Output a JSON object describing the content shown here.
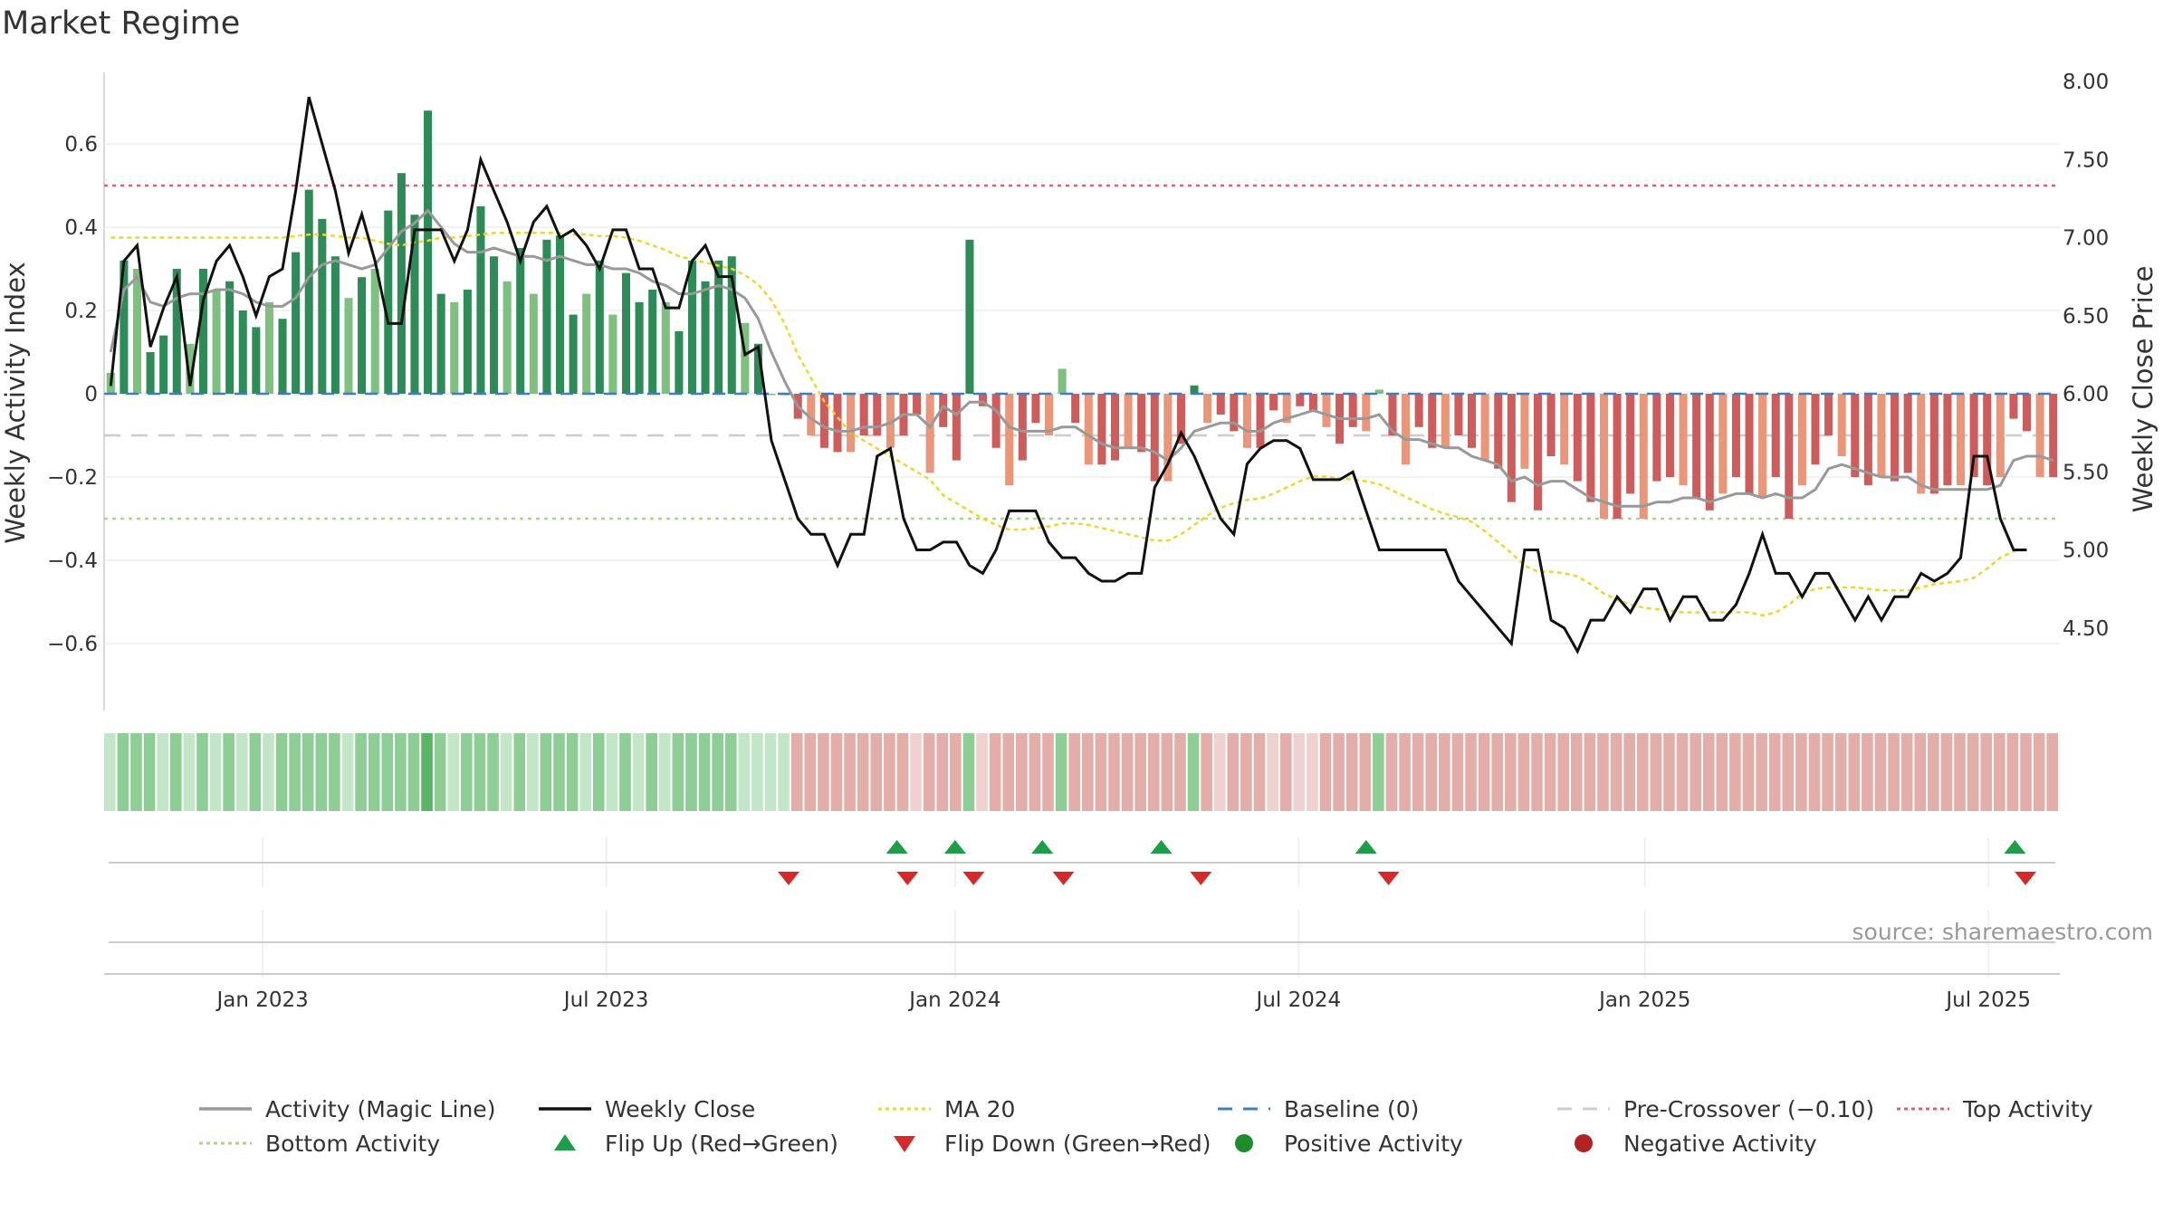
{
  "chart_data": {
    "type": "bar",
    "title": "Market Regime",
    "ylabel_left": "Weekly Activity Index",
    "ylabel_right": "Weekly Close Price",
    "source": "source: sharemaestro.com",
    "y_left_range": [
      -0.75,
      0.75
    ],
    "y_left_ticks": [
      "0.6",
      "0.4",
      "0.2",
      "0",
      "−0.2",
      "−0.4",
      "−0.6"
    ],
    "y_right_range": [
      4.0,
      8.0
    ],
    "y_right_ticks": [
      "8.00",
      "7.50",
      "7.00",
      "6.50",
      "6.00",
      "5.50",
      "5.00",
      "4.50"
    ],
    "x_tick_labels": [
      "Jan 2023",
      "Jul 2023",
      "Jan 2024",
      "Jul 2024",
      "Jan 2025",
      "Jul 2025"
    ],
    "x_tick_weeks": [
      12,
      38,
      64.4,
      90.4,
      116.6,
      142.6
    ],
    "reference_lines": {
      "top_activity": 0.5,
      "bottom_activity": -0.3,
      "baseline": 0,
      "pre_crossover": -0.1
    },
    "activity": [
      0.05,
      0.32,
      0.3,
      0.1,
      0.14,
      0.3,
      0.12,
      0.3,
      0.25,
      0.27,
      0.2,
      0.16,
      0.22,
      0.18,
      0.34,
      0.49,
      0.42,
      0.33,
      0.23,
      0.28,
      0.3,
      0.44,
      0.53,
      0.43,
      0.68,
      0.24,
      0.22,
      0.25,
      0.45,
      0.33,
      0.27,
      0.35,
      0.24,
      0.37,
      0.38,
      0.19,
      0.24,
      0.32,
      0.19,
      0.29,
      0.22,
      0.25,
      0.22,
      0.15,
      0.32,
      0.27,
      0.32,
      0.33,
      0.17,
      0.12,
      0.0,
      0.0,
      -0.06,
      -0.1,
      -0.13,
      -0.14,
      -0.14,
      -0.1,
      -0.1,
      -0.13,
      -0.1,
      -0.05,
      -0.19,
      -0.08,
      -0.16,
      0.37,
      -0.03,
      -0.13,
      -0.22,
      -0.16,
      -0.07,
      -0.1,
      0.06,
      -0.07,
      -0.17,
      -0.17,
      -0.16,
      -0.13,
      -0.14,
      -0.21,
      -0.21,
      -0.12,
      0.02,
      -0.07,
      -0.05,
      -0.09,
      -0.13,
      -0.13,
      -0.04,
      -0.07,
      -0.03,
      -0.04,
      -0.08,
      -0.12,
      -0.08,
      -0.09,
      0.01,
      -0.1,
      -0.17,
      -0.08,
      -0.13,
      -0.13,
      -0.1,
      -0.13,
      -0.16,
      -0.18,
      -0.26,
      -0.18,
      -0.28,
      -0.15,
      -0.17,
      -0.21,
      -0.26,
      -0.3,
      -0.3,
      -0.24,
      -0.3,
      -0.21,
      -0.2,
      -0.22,
      -0.25,
      -0.28,
      -0.24,
      -0.2,
      -0.24,
      -0.25,
      -0.2,
      -0.3,
      -0.22,
      -0.17,
      -0.1,
      -0.15,
      -0.2,
      -0.22,
      -0.2,
      -0.21,
      -0.19,
      -0.24,
      -0.24,
      -0.22,
      -0.22,
      -0.2,
      -0.22,
      -0.2,
      -0.06,
      -0.09,
      -0.2,
      -0.2
    ],
    "weekly_close": [
      6.05,
      6.85,
      6.95,
      6.3,
      6.55,
      6.75,
      6.05,
      6.6,
      6.85,
      6.95,
      6.75,
      6.5,
      6.75,
      6.8,
      7.3,
      7.9,
      7.6,
      7.3,
      6.9,
      7.15,
      6.85,
      6.45,
      6.45,
      7.05,
      7.05,
      7.05,
      6.85,
      7.05,
      7.5,
      7.3,
      7.1,
      6.85,
      7.1,
      7.2,
      7.0,
      7.05,
      6.95,
      6.8,
      7.05,
      7.05,
      6.8,
      6.8,
      6.55,
      6.55,
      6.85,
      6.95,
      6.75,
      6.75,
      6.25,
      6.3,
      5.7,
      5.45,
      5.2,
      5.1,
      5.1,
      4.9,
      5.1,
      5.1,
      5.6,
      5.65,
      5.2,
      5.0,
      5.0,
      5.05,
      5.05,
      4.9,
      4.85,
      5.0,
      5.25,
      5.25,
      5.25,
      5.05,
      4.95,
      4.95,
      4.85,
      4.8,
      4.8,
      4.85,
      4.85,
      5.4,
      5.55,
      5.75,
      5.6,
      5.4,
      5.2,
      5.1,
      5.55,
      5.65,
      5.7,
      5.7,
      5.65,
      5.45,
      5.45,
      5.45,
      5.5,
      5.25,
      5.0,
      5.0,
      5.0,
      5.0,
      5.0,
      5.0,
      4.8,
      4.7,
      4.6,
      4.5,
      4.4,
      5.0,
      5.0,
      4.55,
      4.5,
      4.35,
      4.55,
      4.55,
      4.7,
      4.6,
      4.75,
      4.75,
      4.55,
      4.7,
      4.7,
      4.55,
      4.55,
      4.65,
      4.85,
      5.1,
      4.85,
      4.85,
      4.7,
      4.85,
      4.85,
      4.7,
      4.55,
      4.7,
      4.55,
      4.7,
      4.7,
      4.85,
      4.8,
      4.85,
      4.95,
      5.6,
      5.6,
      5.2,
      5.0,
      5.0
    ],
    "magic_line": [
      0.1,
      0.25,
      0.28,
      0.22,
      0.21,
      0.23,
      0.24,
      0.24,
      0.25,
      0.25,
      0.24,
      0.22,
      0.21,
      0.21,
      0.23,
      0.28,
      0.31,
      0.32,
      0.31,
      0.3,
      0.31,
      0.35,
      0.39,
      0.41,
      0.44,
      0.4,
      0.36,
      0.34,
      0.34,
      0.35,
      0.34,
      0.33,
      0.33,
      0.32,
      0.33,
      0.32,
      0.31,
      0.31,
      0.3,
      0.3,
      0.29,
      0.27,
      0.26,
      0.24,
      0.24,
      0.25,
      0.26,
      0.25,
      0.23,
      0.18,
      0.1,
      0.03,
      -0.03,
      -0.06,
      -0.08,
      -0.09,
      -0.09,
      -0.08,
      -0.08,
      -0.07,
      -0.05,
      -0.05,
      -0.08,
      -0.03,
      -0.05,
      -0.02,
      -0.02,
      -0.04,
      -0.08,
      -0.09,
      -0.09,
      -0.09,
      -0.08,
      -0.08,
      -0.1,
      -0.12,
      -0.13,
      -0.13,
      -0.13,
      -0.14,
      -0.16,
      -0.13,
      -0.09,
      -0.08,
      -0.07,
      -0.07,
      -0.09,
      -0.09,
      -0.07,
      -0.06,
      -0.05,
      -0.04,
      -0.05,
      -0.06,
      -0.06,
      -0.06,
      -0.05,
      -0.09,
      -0.11,
      -0.11,
      -0.12,
      -0.13,
      -0.13,
      -0.15,
      -0.16,
      -0.17,
      -0.21,
      -0.2,
      -0.22,
      -0.21,
      -0.21,
      -0.23,
      -0.25,
      -0.26,
      -0.27,
      -0.27,
      -0.27,
      -0.26,
      -0.26,
      -0.25,
      -0.25,
      -0.26,
      -0.25,
      -0.24,
      -0.24,
      -0.25,
      -0.24,
      -0.25,
      -0.25,
      -0.23,
      -0.18,
      -0.17,
      -0.18,
      -0.19,
      -0.2,
      -0.2,
      -0.2,
      -0.22,
      -0.23,
      -0.23,
      -0.23,
      -0.23,
      -0.23,
      -0.22,
      -0.16,
      -0.15,
      -0.15,
      -0.16
    ],
    "ma20": [
      7.0,
      7.0,
      7.0,
      7.0,
      7.0,
      7.0,
      7.0,
      7.0,
      7.0,
      7.0,
      7.0,
      7.0,
      7.0,
      7.0,
      7.01,
      7.02,
      7.02,
      7.01,
      7.0,
      7.0,
      6.98,
      6.96,
      6.95,
      6.97,
      6.98,
      7.0,
      7.0,
      7.01,
      7.02,
      7.03,
      7.03,
      7.03,
      7.03,
      7.03,
      7.03,
      7.02,
      7.02,
      7.01,
      7.01,
      7.0,
      6.98,
      6.95,
      6.92,
      6.88,
      6.86,
      6.84,
      6.82,
      6.8,
      6.76,
      6.7,
      6.6,
      6.45,
      6.25,
      6.1,
      5.95,
      5.85,
      5.75,
      5.7,
      5.65,
      5.6,
      5.55,
      5.5,
      5.45,
      5.35,
      5.3,
      5.25,
      5.2,
      5.16,
      5.13,
      5.13,
      5.14,
      5.15,
      5.17,
      5.17,
      5.16,
      5.14,
      5.12,
      5.1,
      5.08,
      5.06,
      5.06,
      5.1,
      5.16,
      5.22,
      5.27,
      5.3,
      5.32,
      5.33,
      5.36,
      5.4,
      5.44,
      5.47,
      5.47,
      5.46,
      5.45,
      5.44,
      5.42,
      5.38,
      5.34,
      5.3,
      5.26,
      5.23,
      5.21,
      5.18,
      5.12,
      5.05,
      4.98,
      4.9,
      4.86,
      4.86,
      4.85,
      4.83,
      4.78,
      4.72,
      4.68,
      4.65,
      4.63,
      4.62,
      4.61,
      4.6,
      4.6,
      4.6,
      4.6,
      4.6,
      4.6,
      4.58,
      4.6,
      4.65,
      4.72,
      4.75,
      4.76,
      4.76,
      4.76,
      4.75,
      4.74,
      4.74,
      4.74,
      4.76,
      4.78,
      4.79,
      4.8,
      4.82,
      4.88,
      4.95,
      4.99,
      5.0
    ],
    "regime_strip_colors": {
      "strong_green": "#5bb567",
      "green": "#8fcd96",
      "light_green": "#c3e6c8",
      "red": "#e3aeaa",
      "light_red": "#efd1cf"
    },
    "flip_up_weeks": [
      60,
      64.4,
      71,
      80,
      95.5,
      144.6
    ],
    "flip_down_weeks": [
      51.8,
      60.8,
      65.8,
      72.6,
      83,
      97.2,
      145.4
    ],
    "legend": [
      {
        "label": "Activity (Magic Line)",
        "symbol": "line",
        "color": "#999999"
      },
      {
        "label": "Weekly Close",
        "symbol": "line",
        "color": "#111111"
      },
      {
        "label": "MA 20",
        "symbol": "dotted",
        "color": "#f0d52e"
      },
      {
        "label": "Baseline (0)",
        "symbol": "dashed",
        "color": "#3a7fc1"
      },
      {
        "label": "Pre-Crossover (−0.10)",
        "symbol": "dashed",
        "color": "#cccccc"
      },
      {
        "label": "Top Activity",
        "symbol": "dotted",
        "color": "#e06070"
      },
      {
        "label": "Bottom Activity",
        "symbol": "dotted",
        "color": "#a8d88a"
      },
      {
        "label": "Flip Up (Red→Green)",
        "symbol": "triangle-up",
        "color": "#1e9e48"
      },
      {
        "label": "Flip Down (Green→Red)",
        "symbol": "triangle-down",
        "color": "#d62a2a"
      },
      {
        "label": "Positive Activity",
        "symbol": "circle",
        "color": "#1f8a2e"
      },
      {
        "label": "Negative Activity",
        "symbol": "circle",
        "color": "#b22222"
      }
    ],
    "colors": {
      "bar_green_dark": "#2e8b57",
      "bar_green_light": "#7fbf7f",
      "bar_red_dark": "#cd5c5c",
      "bar_red_light": "#e9967a",
      "magic_line": "#999999",
      "weekly_close": "#111111",
      "ma20": "#f0d52e",
      "top_activity": "#e06070",
      "bottom_activity": "#a8d88a",
      "baseline": "#3a7fc1",
      "pre_crossover": "#cccccc"
    }
  }
}
